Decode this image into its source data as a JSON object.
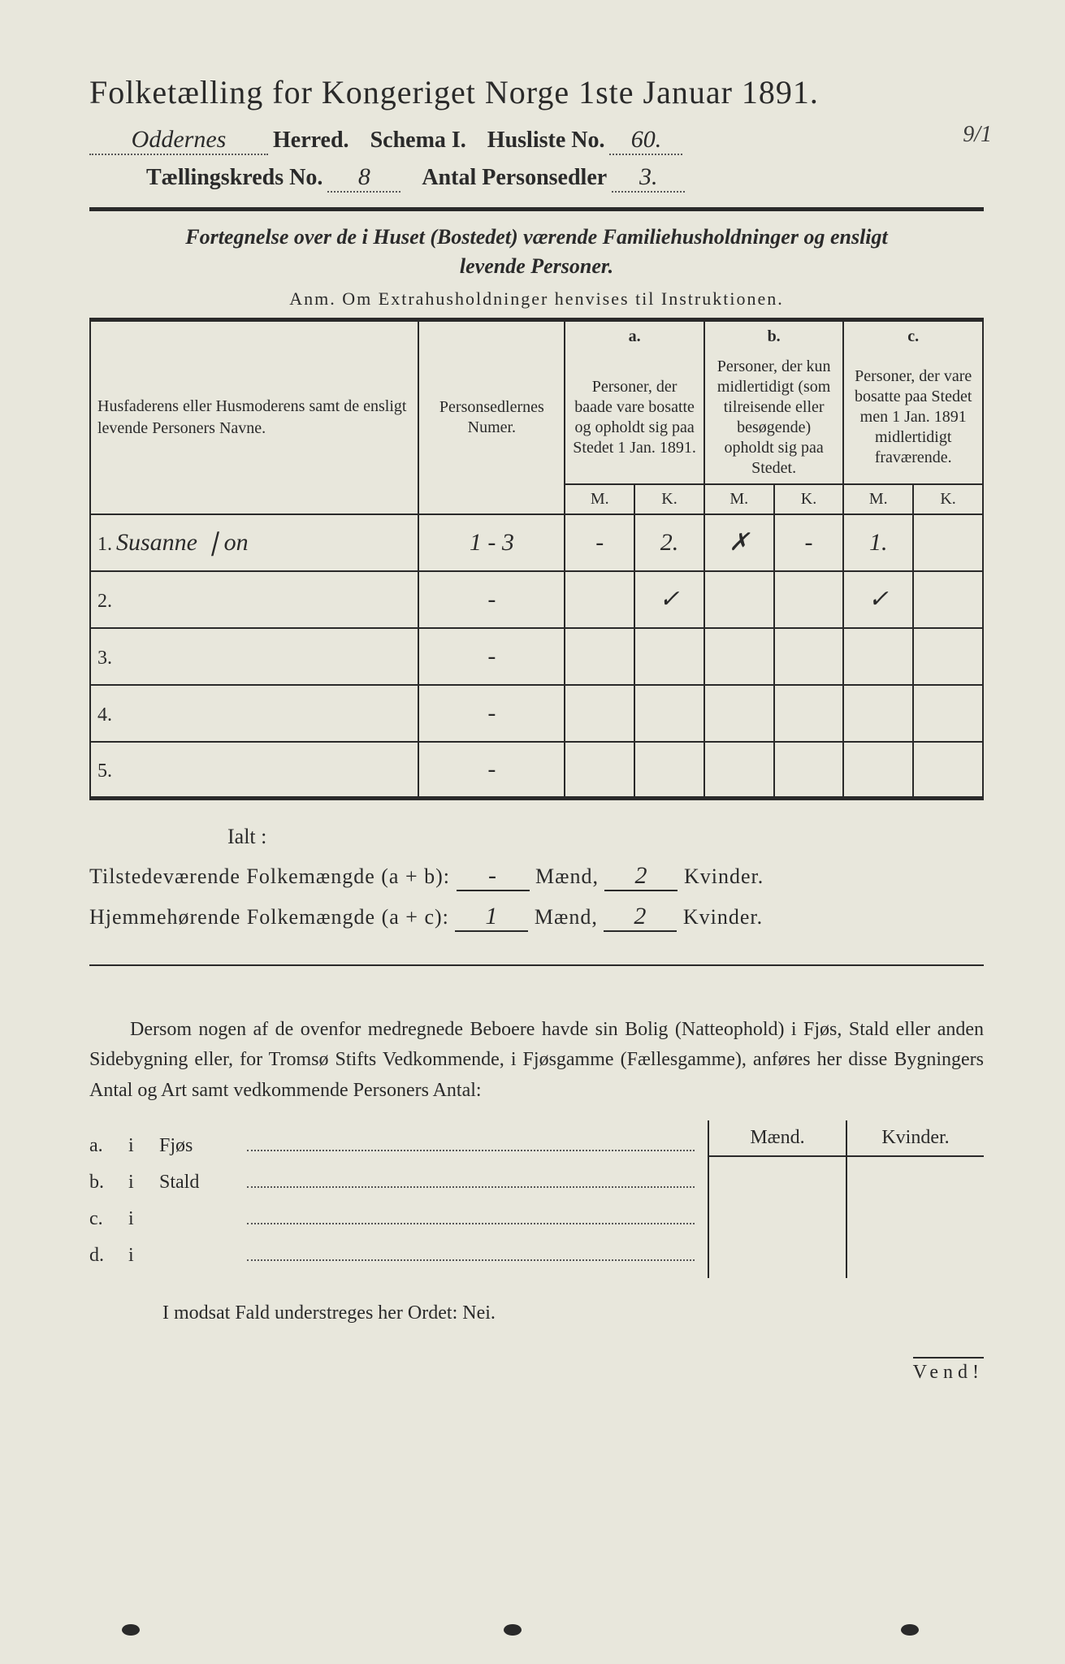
{
  "colors": {
    "paper": "#e8e7dc",
    "ink": "#2a2a2a",
    "dots": "#555555"
  },
  "typography": {
    "body_pt": 24,
    "title_pt": 40,
    "table_header_pt": 20,
    "handwriting_family": "Brush Script MT"
  },
  "header": {
    "title": "Folketælling for Kongeriget Norge 1ste Januar 1891.",
    "herred_hw": "Oddernes",
    "herred_label": "Herred.",
    "schema_label": "Schema I.",
    "husliste_label": "Husliste No.",
    "husliste_hw": "60.",
    "corner_note": "9/1",
    "kreds_label": "Tællingskreds No.",
    "kreds_hw": "8",
    "personsedler_label": "Antal Personsedler",
    "personsedler_hw": "3."
  },
  "subtitle_line1": "Fortegnelse over de i Huset (Bostedet) værende Familiehusholdninger og ensligt",
  "subtitle_line2": "levende Personer.",
  "anm": "Anm.  Om Extrahusholdninger henvises til Instruktionen.",
  "table": {
    "col_names_header": "Husfaderens eller Husmoderens samt de ensligt levende Personers Navne.",
    "col_numer_header": "Personsedlernes Numer.",
    "col_a_letter": "a.",
    "col_a_header": "Personer, der baade vare bosatte og opholdt sig paa Stedet 1 Jan. 1891.",
    "col_b_letter": "b.",
    "col_b_header": "Personer, der kun midlertidigt (som tilreisende eller besøgende) opholdt sig paa Stedet.",
    "col_c_letter": "c.",
    "col_c_header": "Personer, der vare bosatte paa Stedet men 1 Jan. 1891 midlertidigt fraværende.",
    "M": "M.",
    "K": "K.",
    "rows": [
      {
        "n": "1.",
        "name": "Susanne ❘on",
        "numer": "1 - 3",
        "aM": "-",
        "aK": "2.",
        "bM": "✗",
        "bK": "-",
        "cM": "1.",
        "cK": ""
      },
      {
        "n": "2.",
        "name": "",
        "numer": "-",
        "aM": "",
        "aK": "✓",
        "bM": "",
        "bK": "",
        "cM": "✓",
        "cK": ""
      },
      {
        "n": "3.",
        "name": "",
        "numer": "-",
        "aM": "",
        "aK": "",
        "bM": "",
        "bK": "",
        "cM": "",
        "cK": ""
      },
      {
        "n": "4.",
        "name": "",
        "numer": "-",
        "aM": "",
        "aK": "",
        "bM": "",
        "bK": "",
        "cM": "",
        "cK": ""
      },
      {
        "n": "5.",
        "name": "",
        "numer": "-",
        "aM": "",
        "aK": "",
        "bM": "",
        "bK": "",
        "cM": "",
        "cK": ""
      }
    ]
  },
  "ialt": {
    "title": "Ialt :",
    "tilstede_label": "Tilstedeværende Folkemængde (a + b):",
    "tilstede_m": "-",
    "tilstede_k": "2",
    "hjemme_label": "Hjemmehørende Folkemængde (a + c):",
    "hjemme_m": "1",
    "hjemme_k": "2",
    "maend": "Mænd,",
    "kvinder": "Kvinder."
  },
  "para": "Dersom nogen af de ovenfor medregnede Beboere havde sin Bolig (Natteophold) i Fjøs, Stald eller anden Sidebygning eller, for Tromsø Stifts Vedkommende, i Fjøsgamme (Fællesgamme), anføres her disse Bygningers Antal og Art samt vedkommende Personers Antal:",
  "side": {
    "hdr_m": "Mænd.",
    "hdr_k": "Kvinder.",
    "rows": [
      {
        "letter": "a.",
        "i": "i",
        "label": "Fjøs"
      },
      {
        "letter": "b.",
        "i": "i",
        "label": "Stald"
      },
      {
        "letter": "c.",
        "i": "i",
        "label": ""
      },
      {
        "letter": "d.",
        "i": "i",
        "label": ""
      }
    ]
  },
  "nei_line": "I modsat Fald understreges her Ordet: Nei.",
  "vend": "Vend!"
}
